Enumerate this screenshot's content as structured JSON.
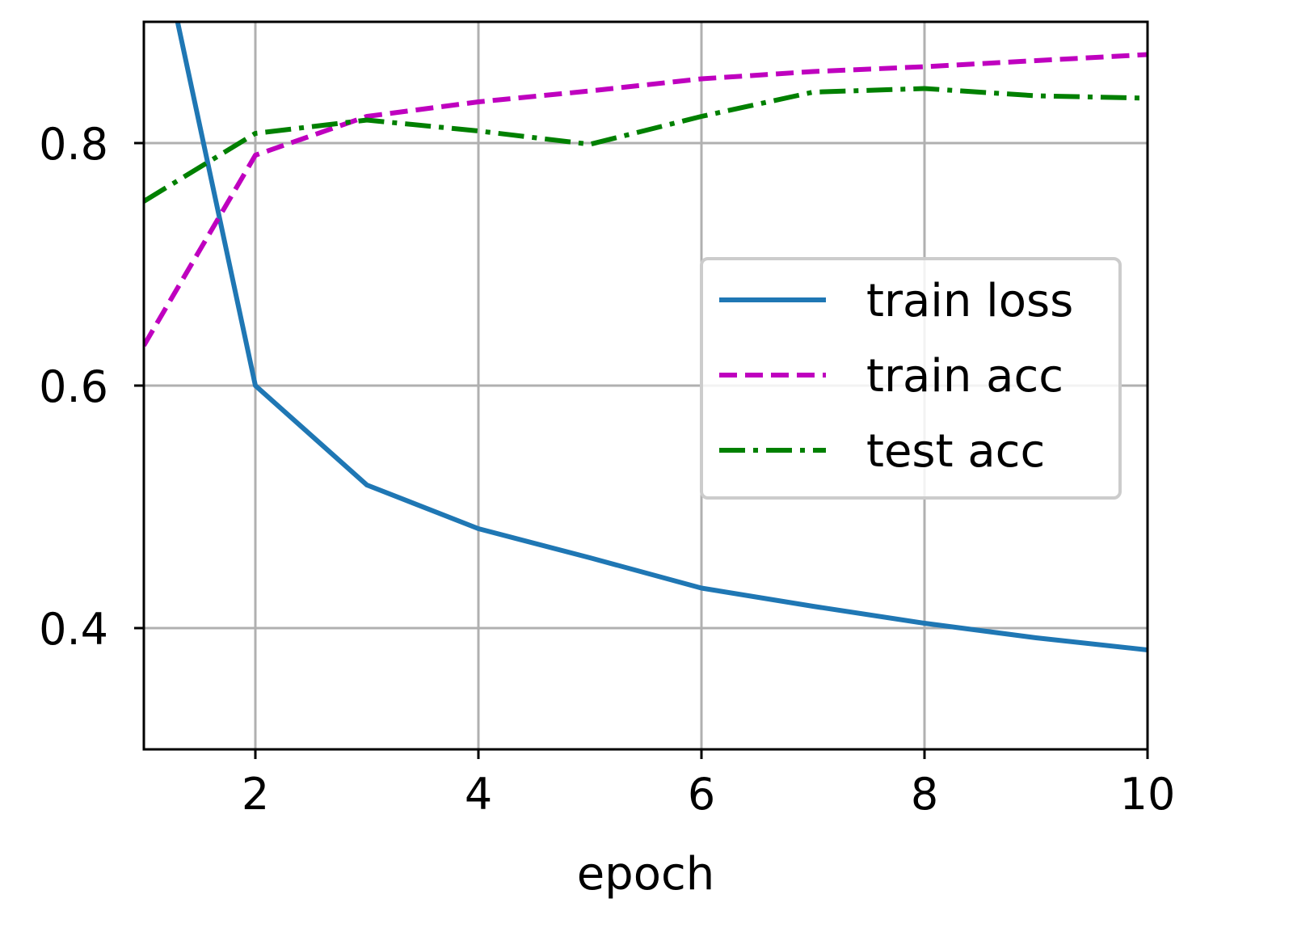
{
  "chart_data": {
    "type": "line",
    "title": "",
    "xlabel": "epoch",
    "ylabel": "",
    "xlim": [
      1,
      10
    ],
    "ylim": [
      0.3,
      0.9
    ],
    "xticks": [
      2,
      4,
      6,
      8,
      10
    ],
    "xtick_labels": [
      "2",
      "4",
      "6",
      "8",
      "10"
    ],
    "yticks": [
      0.4,
      0.6,
      0.8
    ],
    "ytick_labels": [
      "0.4",
      "0.6",
      "0.8"
    ],
    "grid": true,
    "legend_position": "center-right",
    "x": [
      1,
      2,
      3,
      4,
      5,
      6,
      7,
      8,
      9,
      10
    ],
    "series": [
      {
        "name": "train loss",
        "color": "#1f77b4",
        "style": "solid",
        "values": [
          1.03,
          0.6,
          0.518,
          0.482,
          0.458,
          0.433,
          0.418,
          0.404,
          0.392,
          0.382
        ]
      },
      {
        "name": "train acc",
        "color": "#bf00bf",
        "style": "dashed",
        "values": [
          0.633,
          0.79,
          0.822,
          0.834,
          0.843,
          0.853,
          0.859,
          0.863,
          0.868,
          0.873
        ]
      },
      {
        "name": "test acc",
        "color": "#008000",
        "style": "dashdot",
        "values": [
          0.752,
          0.808,
          0.819,
          0.81,
          0.799,
          0.822,
          0.842,
          0.845,
          0.839,
          0.837
        ]
      }
    ]
  }
}
